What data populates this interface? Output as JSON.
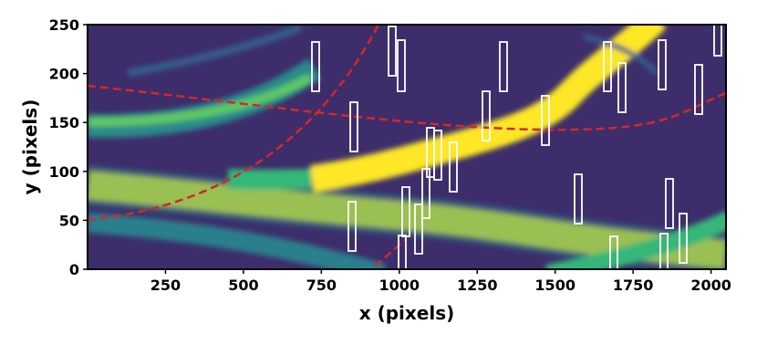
{
  "chart_data": {
    "type": "image",
    "xlabel": "x (pixels)",
    "ylabel": "y (pixels)",
    "xlim": [
      0,
      2048
    ],
    "ylim": [
      0,
      250
    ],
    "xticks": [
      250,
      500,
      750,
      1000,
      1250,
      1500,
      1750,
      2000
    ],
    "yticks": [
      0,
      50,
      100,
      150,
      200,
      250
    ]
  }
}
